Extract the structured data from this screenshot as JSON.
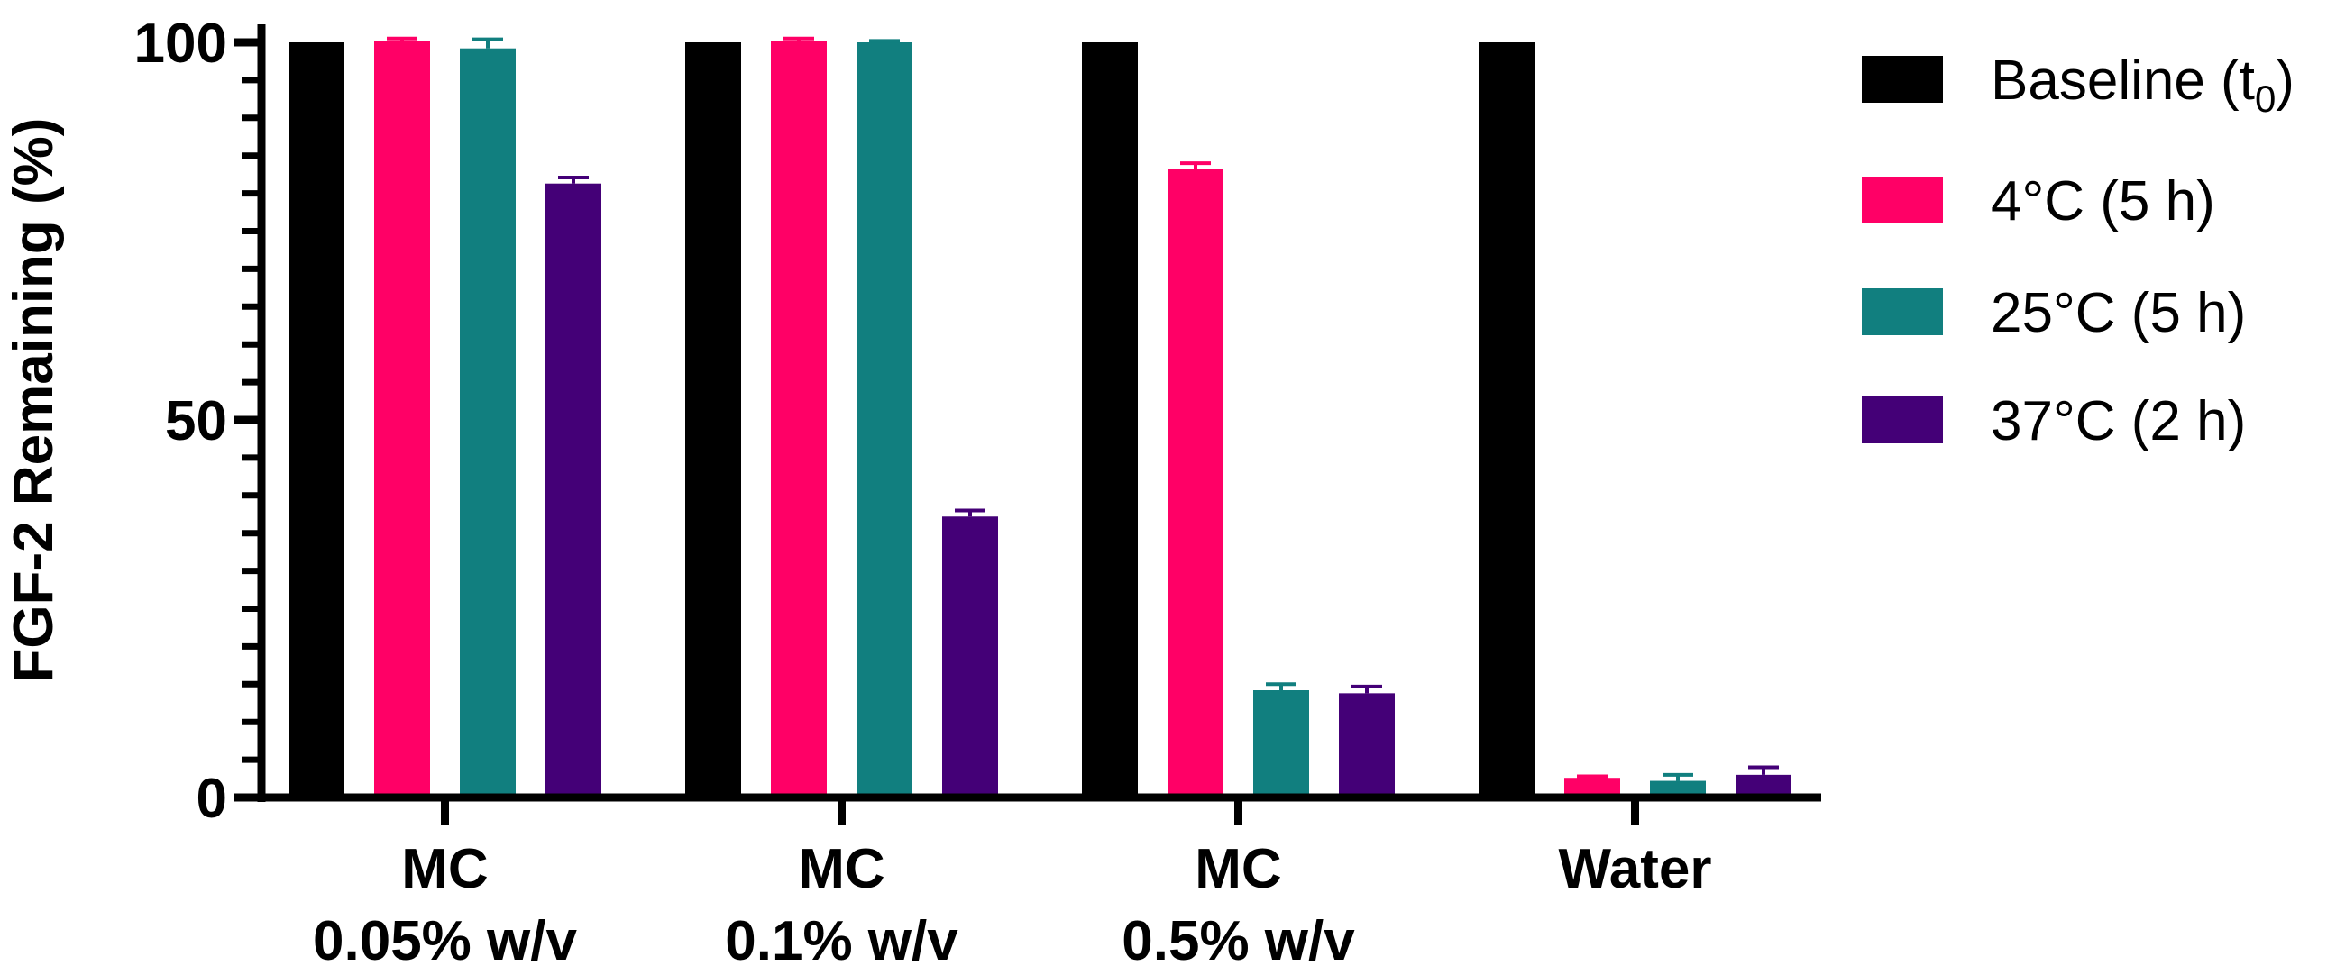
{
  "chart_data": {
    "type": "bar",
    "title": "",
    "xlabel": "",
    "ylabel": "FGF-2 Remaining (%)",
    "ylim": [
      0,
      100
    ],
    "yticks": [
      0,
      50,
      100
    ],
    "grid": false,
    "legend_position": "top-right",
    "categories": [
      {
        "line1": "MC",
        "line2": "0.05% w/v"
      },
      {
        "line1": "MC",
        "line2": "0.1% w/v"
      },
      {
        "line1": "MC",
        "line2": "0.5% w/v"
      },
      {
        "line1": "Water",
        "line2": ""
      }
    ],
    "series": [
      {
        "name": "Baseline (t0)",
        "label_main": "Baseline (t",
        "label_sub": "0",
        "label_end": ")",
        "color": "#000000",
        "values": [
          100,
          100,
          100,
          100
        ],
        "errors": [
          0,
          0,
          0,
          0
        ]
      },
      {
        "name": "4°C (5 h)",
        "label_main": "4°C (5 h)",
        "label_sub": "",
        "label_end": "",
        "color": "#FF0066",
        "values": [
          100.2,
          100.2,
          83.2,
          2.6
        ],
        "errors": [
          0.3,
          0.3,
          0.8,
          0.2
        ]
      },
      {
        "name": "25°C (5 h)",
        "label_main": "25°C (5 h)",
        "label_sub": "",
        "label_end": "",
        "color": "#117F7F",
        "values": [
          99.2,
          100.0,
          14.2,
          2.2
        ],
        "errors": [
          1.2,
          0.2,
          0.8,
          0.8
        ]
      },
      {
        "name": "37°C (2 h)",
        "label_main": "37°C (2 h)",
        "label_sub": "",
        "label_end": "",
        "color": "#440077",
        "values": [
          81.3,
          37.2,
          13.8,
          3.0
        ],
        "errors": [
          0.8,
          0.8,
          0.9,
          1.0
        ]
      }
    ]
  }
}
